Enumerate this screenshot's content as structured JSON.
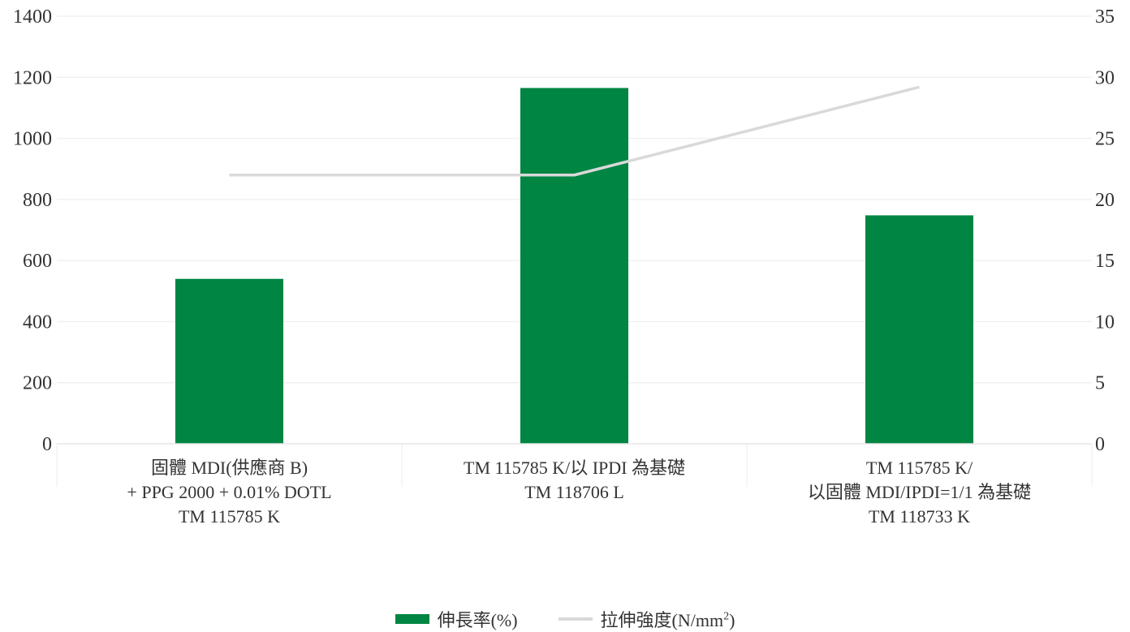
{
  "chart_data": {
    "type": "bar",
    "categories": [
      [
        "固體 MDI(供應商 B)",
        "+ PPG 2000 + 0.01% DOTL",
        "TM 115785 K"
      ],
      [
        "TM 115785 K/以 IPDI 為基礎",
        "TM 118706 L"
      ],
      [
        "TM 115785 K/",
        "以固體 MDI/IPDI=1/1 為基礎",
        "TM 118733 K"
      ]
    ],
    "series": [
      {
        "name": "伸長率(%)",
        "type": "bar",
        "axis": "left",
        "values": [
          540,
          1165,
          748
        ],
        "color": "#008542"
      },
      {
        "name": "拉伸強度(N/mm²)",
        "type": "line",
        "axis": "right",
        "values": [
          22,
          22,
          29.2
        ],
        "color": "#d9d9d9"
      }
    ],
    "y_left": {
      "min": 0,
      "max": 1400,
      "ticks": [
        0,
        200,
        400,
        600,
        800,
        1000,
        1200,
        1400
      ]
    },
    "y_right": {
      "min": 0,
      "max": 35,
      "ticks": [
        0,
        5,
        10,
        15,
        20,
        25,
        30,
        35
      ]
    },
    "grid": true,
    "legend_position": "bottom"
  },
  "legend": {
    "bar_label": "伸長率(%)",
    "line_label_main": "拉伸強度(N/mm",
    "line_label_sup": "2",
    "line_label_end": ")"
  }
}
